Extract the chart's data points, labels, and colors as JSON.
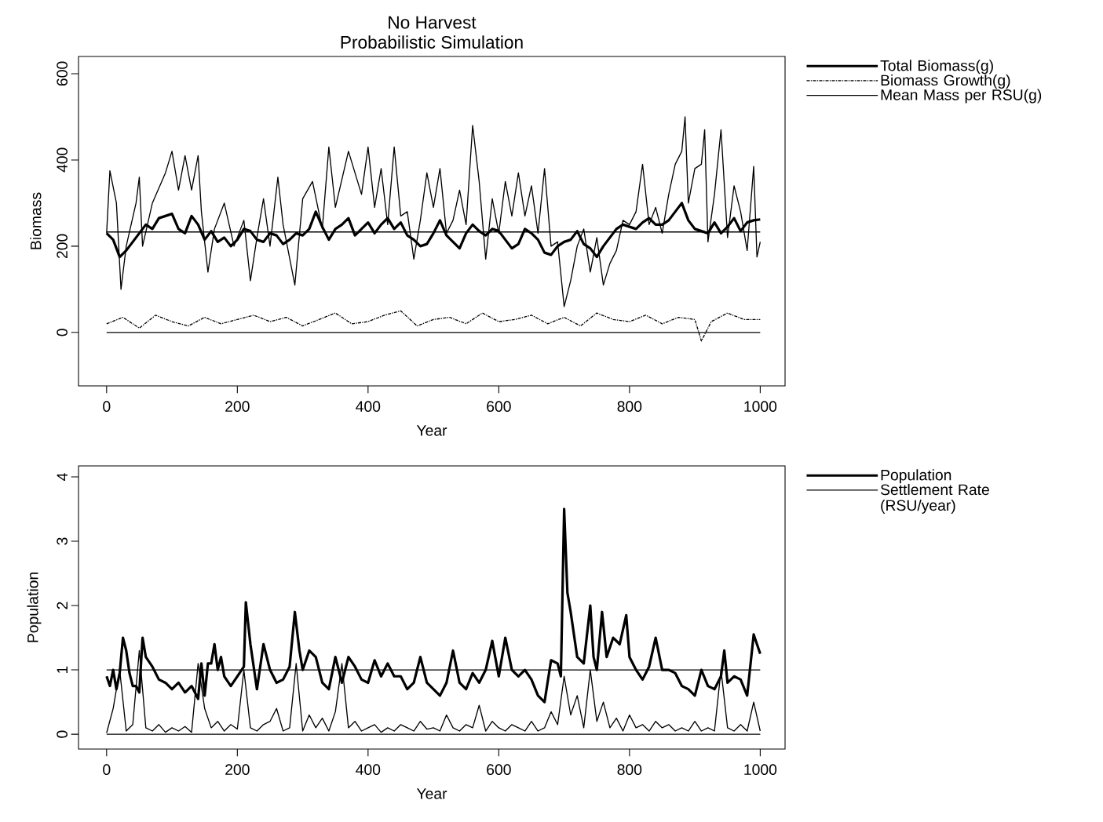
{
  "chart_data": [
    {
      "type": "line",
      "title": "No Harvest",
      "subtitle": "Probabilistic Simulation",
      "xlabel": "Year",
      "ylabel": "Biomass",
      "xlim": [
        -43,
        1038
      ],
      "ylim": [
        -124,
        640
      ],
      "xticks": [
        0,
        200,
        400,
        600,
        800,
        1000
      ],
      "yticks": [
        0,
        200,
        400,
        600
      ],
      "legend": "right",
      "ref_lines": [
        {
          "axis": "y",
          "value": 233,
          "color": "#000000"
        },
        {
          "axis": "y",
          "value": 0,
          "color": "#000000"
        }
      ],
      "series": [
        {
          "name": "Total Biomass(g)",
          "color": "#000000",
          "line_style": "solid",
          "x": [
            0,
            10,
            20,
            30,
            40,
            50,
            60,
            70,
            80,
            90,
            100,
            110,
            120,
            130,
            140,
            150,
            160,
            170,
            180,
            190,
            200,
            210,
            220,
            230,
            240,
            250,
            260,
            270,
            280,
            290,
            300,
            310,
            320,
            330,
            340,
            350,
            360,
            370,
            380,
            390,
            400,
            410,
            420,
            430,
            440,
            450,
            460,
            470,
            480,
            490,
            500,
            510,
            520,
            530,
            540,
            550,
            560,
            570,
            580,
            590,
            600,
            610,
            620,
            630,
            640,
            650,
            660,
            670,
            680,
            690,
            700,
            710,
            720,
            730,
            740,
            750,
            760,
            770,
            780,
            790,
            800,
            810,
            820,
            830,
            840,
            850,
            860,
            870,
            880,
            890,
            900,
            910,
            920,
            930,
            940,
            950,
            960,
            970,
            980,
            990,
            1000
          ],
          "values": [
            230,
            215,
            175,
            190,
            210,
            230,
            250,
            240,
            265,
            270,
            275,
            240,
            230,
            270,
            250,
            215,
            235,
            210,
            220,
            200,
            215,
            240,
            235,
            215,
            210,
            230,
            225,
            205,
            215,
            230,
            225,
            240,
            280,
            245,
            215,
            240,
            250,
            265,
            225,
            240,
            255,
            230,
            250,
            265,
            240,
            255,
            225,
            215,
            200,
            205,
            230,
            260,
            225,
            210,
            195,
            230,
            250,
            235,
            225,
            240,
            235,
            215,
            195,
            205,
            240,
            230,
            215,
            185,
            180,
            200,
            210,
            215,
            235,
            205,
            195,
            175,
            200,
            220,
            240,
            250,
            245,
            240,
            255,
            265,
            250,
            250,
            260,
            280,
            300,
            260,
            240,
            235,
            230,
            255,
            230,
            245,
            265,
            235,
            255,
            260,
            262
          ]
        },
        {
          "name": "Biomass Growth(g)",
          "color": "#000000",
          "line_style": "dashdot",
          "x": [
            0,
            25,
            50,
            75,
            100,
            125,
            150,
            175,
            200,
            225,
            250,
            275,
            300,
            325,
            350,
            375,
            400,
            425,
            450,
            475,
            500,
            525,
            550,
            575,
            600,
            625,
            650,
            675,
            700,
            725,
            750,
            775,
            800,
            825,
            850,
            875,
            900,
            910,
            925,
            950,
            975,
            1000
          ],
          "values": [
            20,
            35,
            10,
            40,
            25,
            15,
            35,
            20,
            30,
            40,
            25,
            35,
            15,
            30,
            45,
            20,
            25,
            40,
            50,
            15,
            30,
            35,
            20,
            45,
            25,
            30,
            40,
            20,
            35,
            15,
            45,
            30,
            25,
            40,
            20,
            35,
            30,
            -20,
            25,
            45,
            30,
            30
          ]
        },
        {
          "name": "Mean Mass per RSU(g)",
          "color": "#000000",
          "line_style": "solid",
          "x": [
            0,
            5,
            15,
            22,
            30,
            45,
            50,
            55,
            70,
            90,
            100,
            110,
            120,
            130,
            140,
            145,
            155,
            165,
            180,
            195,
            210,
            220,
            230,
            240,
            250,
            262,
            270,
            288,
            300,
            315,
            330,
            340,
            350,
            370,
            390,
            400,
            410,
            420,
            430,
            440,
            450,
            460,
            470,
            480,
            490,
            500,
            510,
            520,
            530,
            540,
            550,
            560,
            570,
            580,
            590,
            600,
            610,
            620,
            630,
            640,
            650,
            660,
            670,
            680,
            690,
            700,
            710,
            720,
            730,
            740,
            750,
            760,
            770,
            780,
            790,
            800,
            810,
            820,
            830,
            840,
            850,
            860,
            870,
            880,
            885,
            890,
            900,
            910,
            915,
            920,
            930,
            940,
            950,
            960,
            970,
            980,
            990,
            995,
            1000
          ],
          "values": [
            230,
            375,
            300,
            100,
            200,
            300,
            360,
            200,
            300,
            370,
            420,
            330,
            410,
            330,
            410,
            280,
            140,
            240,
            300,
            200,
            260,
            120,
            220,
            310,
            200,
            360,
            250,
            110,
            310,
            350,
            240,
            430,
            290,
            420,
            320,
            430,
            290,
            380,
            250,
            430,
            270,
            280,
            170,
            260,
            370,
            290,
            380,
            230,
            260,
            330,
            250,
            480,
            350,
            170,
            310,
            230,
            350,
            270,
            370,
            270,
            340,
            230,
            380,
            200,
            210,
            60,
            120,
            200,
            240,
            140,
            220,
            110,
            160,
            190,
            260,
            250,
            280,
            390,
            250,
            290,
            230,
            320,
            390,
            420,
            500,
            300,
            380,
            390,
            470,
            210,
            320,
            470,
            220,
            340,
            280,
            190,
            385,
            175,
            210
          ]
        }
      ]
    },
    {
      "type": "line",
      "xlabel": "Year",
      "ylabel": "Population",
      "xlim": [
        -43,
        1038
      ],
      "ylim": [
        -0.23,
        4.17
      ],
      "xticks": [
        0,
        200,
        400,
        600,
        800,
        1000
      ],
      "yticks": [
        0,
        1,
        2,
        3,
        4
      ],
      "legend": "right",
      "ref_lines": [
        {
          "axis": "y",
          "value": 1,
          "color": "#000000"
        },
        {
          "axis": "y",
          "value": 0,
          "color": "#000000"
        }
      ],
      "series": [
        {
          "name": "Population",
          "color": "#000000",
          "line_style": "solid",
          "x": [
            0,
            5,
            10,
            15,
            20,
            25,
            30,
            35,
            40,
            45,
            50,
            55,
            60,
            70,
            80,
            90,
            100,
            110,
            120,
            130,
            140,
            145,
            150,
            155,
            160,
            165,
            170,
            175,
            180,
            190,
            200,
            210,
            213,
            220,
            230,
            240,
            250,
            260,
            270,
            280,
            288,
            295,
            300,
            310,
            320,
            330,
            340,
            350,
            360,
            370,
            380,
            390,
            400,
            410,
            420,
            430,
            440,
            450,
            460,
            470,
            480,
            490,
            500,
            510,
            520,
            530,
            540,
            550,
            560,
            570,
            580,
            590,
            600,
            610,
            620,
            630,
            640,
            650,
            660,
            670,
            680,
            690,
            695,
            700,
            705,
            710,
            720,
            730,
            740,
            745,
            750,
            758,
            765,
            775,
            785,
            795,
            800,
            810,
            820,
            830,
            840,
            850,
            860,
            870,
            880,
            890,
            900,
            910,
            920,
            930,
            940,
            945,
            950,
            960,
            970,
            980,
            990,
            1000
          ],
          "values": [
            0.9,
            0.75,
            1.0,
            0.7,
            0.95,
            1.5,
            1.3,
            0.95,
            0.75,
            0.75,
            0.65,
            1.5,
            1.2,
            1.05,
            0.85,
            0.8,
            0.7,
            0.8,
            0.65,
            0.75,
            0.55,
            1.1,
            0.6,
            1.1,
            1.1,
            1.4,
            1.0,
            1.2,
            0.9,
            0.75,
            0.9,
            1.05,
            2.05,
            1.4,
            0.7,
            1.4,
            1.0,
            0.8,
            0.85,
            1.05,
            1.9,
            1.3,
            1.0,
            1.3,
            1.2,
            0.8,
            0.7,
            1.2,
            0.8,
            1.2,
            1.05,
            0.85,
            0.8,
            1.15,
            0.9,
            1.1,
            0.9,
            0.9,
            0.7,
            0.8,
            1.2,
            0.8,
            0.7,
            0.6,
            0.8,
            1.3,
            0.8,
            0.7,
            0.95,
            0.8,
            1.0,
            1.45,
            0.9,
            1.5,
            1.0,
            0.9,
            1.0,
            0.85,
            0.6,
            0.5,
            1.15,
            1.1,
            0.9,
            3.5,
            2.2,
            1.9,
            1.2,
            1.1,
            2.0,
            1.2,
            1.0,
            1.9,
            1.2,
            1.5,
            1.4,
            1.85,
            1.2,
            1.0,
            0.85,
            1.05,
            1.5,
            1.0,
            1.0,
            0.95,
            0.75,
            0.7,
            0.6,
            1.0,
            0.75,
            0.7,
            0.9,
            1.3,
            0.8,
            0.9,
            0.85,
            0.6,
            1.55,
            1.25
          ]
        },
        {
          "name": "Settlement Rate (RSU/year)",
          "color": "#000000",
          "line_style": "solid",
          "x": [
            0,
            10,
            20,
            30,
            40,
            50,
            60,
            70,
            80,
            90,
            100,
            110,
            120,
            130,
            140,
            150,
            160,
            170,
            180,
            190,
            200,
            210,
            220,
            230,
            240,
            250,
            260,
            270,
            280,
            290,
            300,
            310,
            320,
            330,
            340,
            350,
            360,
            370,
            380,
            390,
            400,
            410,
            420,
            430,
            440,
            450,
            460,
            470,
            480,
            490,
            500,
            510,
            520,
            530,
            540,
            550,
            560,
            570,
            580,
            590,
            600,
            610,
            620,
            630,
            640,
            650,
            660,
            670,
            680,
            690,
            700,
            710,
            720,
            730,
            740,
            750,
            760,
            770,
            780,
            790,
            800,
            810,
            820,
            830,
            840,
            850,
            860,
            870,
            880,
            890,
            900,
            910,
            920,
            930,
            940,
            950,
            960,
            970,
            980,
            990,
            1000
          ],
          "values": [
            0.02,
            0.4,
            1.0,
            0.05,
            0.15,
            1.3,
            0.1,
            0.05,
            0.15,
            0.03,
            0.1,
            0.05,
            0.12,
            0.03,
            1.1,
            0.4,
            0.1,
            0.2,
            0.05,
            0.15,
            0.08,
            1.0,
            0.1,
            0.05,
            0.15,
            0.2,
            0.4,
            0.05,
            0.1,
            1.1,
            0.05,
            0.3,
            0.1,
            0.25,
            0.05,
            0.35,
            1.1,
            0.1,
            0.2,
            0.05,
            0.1,
            0.15,
            0.03,
            0.1,
            0.05,
            0.15,
            0.1,
            0.05,
            0.2,
            0.08,
            0.1,
            0.05,
            0.3,
            0.1,
            0.05,
            0.15,
            0.1,
            0.45,
            0.05,
            0.2,
            0.1,
            0.05,
            0.15,
            0.1,
            0.05,
            0.2,
            0.05,
            0.1,
            0.35,
            0.15,
            0.9,
            0.3,
            0.6,
            0.1,
            1.0,
            0.2,
            0.5,
            0.1,
            0.25,
            0.05,
            0.3,
            0.1,
            0.15,
            0.05,
            0.2,
            0.1,
            0.15,
            0.05,
            0.1,
            0.05,
            0.2,
            0.05,
            0.1,
            0.05,
            1.0,
            0.1,
            0.05,
            0.15,
            0.05,
            0.5,
            0.05
          ]
        }
      ]
    }
  ]
}
